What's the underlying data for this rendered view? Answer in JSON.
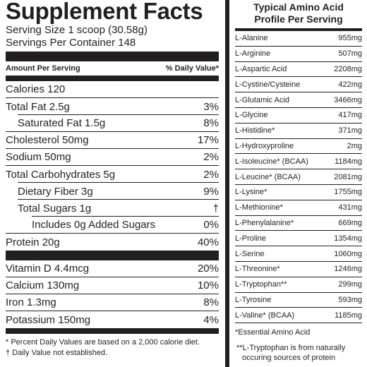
{
  "facts": {
    "title": "Supplement Facts",
    "serving_size": "Serving Size 1 scoop (30.58g)",
    "servings_per_container": "Servings Per Container 148",
    "header_amount": "Amount Per Serving",
    "header_dv": "% Daily Value*",
    "rows": [
      {
        "label": "Calories 120",
        "dv": ""
      },
      {
        "label": "Total Fat 2.5g",
        "dv": "3%"
      },
      {
        "label": "Saturated Fat 1.5g",
        "dv": "8%"
      },
      {
        "label": "Cholesterol 50mg",
        "dv": "17%"
      },
      {
        "label": "Sodium 50mg",
        "dv": "2%"
      },
      {
        "label": "Total Carbohydrates 5g",
        "dv": "2%"
      },
      {
        "label": "Dietary Fiber 3g",
        "dv": "9%"
      },
      {
        "label": "Total Sugars 1g",
        "dv": "†"
      },
      {
        "label": "Includes 0g Added Sugars",
        "dv": "0%"
      },
      {
        "label": "Protein 20g",
        "dv": "40%"
      }
    ],
    "vitamins": [
      {
        "label": "Vitamin D 4.4mcg",
        "dv": "20%"
      },
      {
        "label": "Calcium 130mg",
        "dv": "10%"
      },
      {
        "label": "Iron 1.3mg",
        "dv": "8%"
      },
      {
        "label": "Potassium 150mg",
        "dv": "4%"
      }
    ],
    "footnote_1": "* Percent Daily Values are based on a 2,000 calorie diet.",
    "footnote_2": "† Daily Value not established."
  },
  "amino": {
    "title_line1": "Typical Amino Acid",
    "title_line2": "Profile Per Serving",
    "rows": [
      {
        "name": "L-Alanine",
        "value": "955mg"
      },
      {
        "name": "L-Arginine",
        "value": "507mg"
      },
      {
        "name": "L-Aspartic Acid",
        "value": "2208mg"
      },
      {
        "name": "L-Cystine/Cysteine",
        "value": "422mg"
      },
      {
        "name": "L-Glutamic Acid",
        "value": "3466mg"
      },
      {
        "name": "L-Glycine",
        "value": "417mg"
      },
      {
        "name": "L-Histidine*",
        "value": "371mg"
      },
      {
        "name": "L-Hydroxyproline",
        "value": "2mg"
      },
      {
        "name": "L-Isoleucine* (BCAA)",
        "value": "1184mg"
      },
      {
        "name": "L-Leucine* (BCAA)",
        "value": "2081mg"
      },
      {
        "name": "L-Lysine*",
        "value": "1755mg"
      },
      {
        "name": "L-Methionine*",
        "value": "431mg"
      },
      {
        "name": "L-Phenylalanine*",
        "value": "669mg"
      },
      {
        "name": "L-Proline",
        "value": "1354mg"
      },
      {
        "name": "L-Serine",
        "value": "1060mg"
      },
      {
        "name": "L-Threonine*",
        "value": "1246mg"
      },
      {
        "name": "L-Tryptophan**",
        "value": "299mg"
      },
      {
        "name": "L-Tyrosine",
        "value": "593mg"
      },
      {
        "name": "L-Valine* (BCAA)",
        "value": "1185mg"
      }
    ],
    "note_1": "*Essential Amino Acid",
    "note_2_line1": "**L-Tryptophan is from naturally",
    "note_2_line2": "occuring sources of protein"
  }
}
